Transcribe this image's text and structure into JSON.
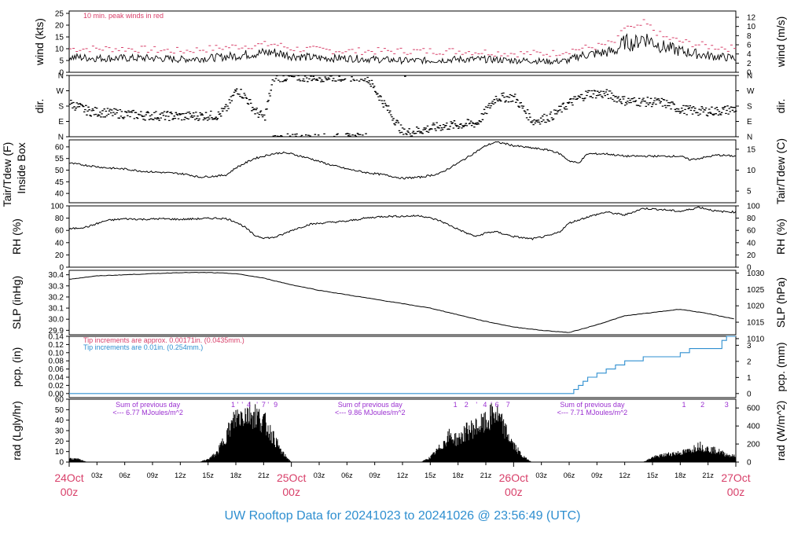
{
  "title": "UW Rooftop Data for 20241023  to  20241026 @ 23:56:49  (UTC)",
  "colors": {
    "pink": "#d8406a",
    "blue": "#2f8fd0",
    "purple": "#9a2fd0",
    "ink": "#000000"
  },
  "time_axis": {
    "hours_total": 72,
    "tick_labels": [
      "03z",
      "06z",
      "09z",
      "12z",
      "15z",
      "18z",
      "21z",
      "03z",
      "06z",
      "09z",
      "12z",
      "15z",
      "18z",
      "21z",
      "03z",
      "06z",
      "09z",
      "12z",
      "15z",
      "18z",
      "21z"
    ],
    "tick_hours": [
      3,
      6,
      9,
      12,
      15,
      18,
      21,
      27,
      30,
      33,
      36,
      39,
      42,
      45,
      51,
      54,
      57,
      60,
      63,
      66,
      69
    ],
    "day_labels": [
      {
        "date": "24Oct",
        "time": "00z",
        "hour": 0
      },
      {
        "date": "25Oct",
        "time": "00z",
        "hour": 24
      },
      {
        "date": "26Oct",
        "time": "00z",
        "hour": 48
      },
      {
        "date": "27Oct",
        "time": "00z",
        "hour": 72
      }
    ]
  },
  "panels": {
    "wind": {
      "left_label": "wind (kts)",
      "right_label": "wind (m/s)",
      "left_ticks": [
        "0",
        "5",
        "10",
        "15",
        "20",
        "25"
      ],
      "right_ticks": [
        "0",
        "2",
        "4",
        "6",
        "8",
        "10",
        "12"
      ],
      "note": "10 min. peak winds in red"
    },
    "dir": {
      "left_label": "dir.",
      "right_label": "dir.",
      "left_ticks": [
        "N",
        "E",
        "S",
        "W",
        "N"
      ],
      "right_ticks": [
        "N",
        "E",
        "S",
        "W",
        "N"
      ]
    },
    "temp": {
      "left_label_1": "Tair/Tdew (F)",
      "left_label_2": "Inside Box",
      "right_label": "Tair/Tdew (C)",
      "left_ticks": [
        "40",
        "45",
        "50",
        "55",
        "60"
      ],
      "right_ticks": [
        "5",
        "10",
        "15"
      ]
    },
    "rh": {
      "left_label": "RH (%)",
      "right_label": "RH (%)",
      "left_ticks": [
        "0",
        "20",
        "40",
        "60",
        "80",
        "100"
      ],
      "right_ticks": [
        "0",
        "20",
        "40",
        "60",
        "80",
        "100"
      ]
    },
    "slp": {
      "left_label": "SLP (inHg)",
      "right_label": "SLP (hPa)",
      "left_ticks": [
        "29.9",
        "30.0",
        "30.1",
        "30.2",
        "30.3",
        "30.4"
      ],
      "right_ticks": [
        "1010",
        "1015",
        "1020",
        "1025",
        "1030"
      ]
    },
    "pcp": {
      "left_label": "pcp. (in)",
      "right_label": "pcp. (mm)",
      "left_ticks": [
        "0.00",
        "0.02",
        "0.04",
        "0.06",
        "0.08",
        "0.10",
        "0.12",
        "0.14"
      ],
      "right_ticks": [
        "0",
        "1",
        "2",
        "3"
      ],
      "note_1": "Tip increments are approx. 0.00171in. (0.0435mm.)",
      "note_2": "Tip increments are 0.01in. (0.254mm.)"
    },
    "rad": {
      "left_label": "rad (Lgly/hr)",
      "right_label": "rad (W/m^2)",
      "left_ticks": [
        "0",
        "10",
        "20",
        "30",
        "40",
        "50",
        "60"
      ],
      "right_ticks": [
        "0",
        "200",
        "400",
        "600"
      ],
      "day_notes": [
        {
          "line1": "Sum of previous day",
          "line2": "<--- 6.77 MJoules/m^2",
          "hour": 8.5
        },
        {
          "line1": "Sum of previous day",
          "line2": "<--- 9.86 MJoules/m^2",
          "hour": 32.5
        },
        {
          "line1": "Sum of previous day",
          "line2": "<--- 7.71 MJoules/m^2",
          "hour": 56.5
        }
      ],
      "top_marks": [
        {
          "text": "1",
          "hour": 17.7
        },
        {
          "text": "'",
          "hour": 18.2
        },
        {
          "text": "'",
          "hour": 18.7
        },
        {
          "text": "4",
          "hour": 19.4
        },
        {
          "text": "'",
          "hour": 20.3
        },
        {
          "text": "7",
          "hour": 21.0
        },
        {
          "text": "'",
          "hour": 21.5
        },
        {
          "text": "9",
          "hour": 22.3
        },
        {
          "text": "1",
          "hour": 41.7
        },
        {
          "text": "2",
          "hour": 42.9
        },
        {
          "text": "'",
          "hour": 44.0
        },
        {
          "text": "4",
          "hour": 44.9
        },
        {
          "text": "'",
          "hour": 45.6
        },
        {
          "text": "6",
          "hour": 46.2
        },
        {
          "text": "7",
          "hour": 47.4
        },
        {
          "text": "1",
          "hour": 66.4
        },
        {
          "text": "2",
          "hour": 68.4
        },
        {
          "text": "3",
          "hour": 71.0
        }
      ]
    }
  },
  "chart_data": {
    "type": "line",
    "x_units": "hours since 24Oct 00z",
    "x_range": [
      0,
      72
    ],
    "series": [
      {
        "name": "wind",
        "units": "kts",
        "ylim": [
          0,
          26
        ],
        "x": [
          0,
          3,
          6,
          9,
          12,
          15,
          18,
          20,
          22,
          24,
          27,
          30,
          33,
          36,
          39,
          42,
          45,
          48,
          50,
          52,
          54,
          55,
          57,
          59,
          60,
          61,
          62,
          63,
          64,
          66,
          69,
          72
        ],
        "y": [
          6.5,
          6,
          6,
          6,
          5.5,
          6,
          7,
          8,
          8.5,
          7,
          6,
          6,
          5.5,
          5,
          5,
          5.5,
          5.5,
          5,
          5,
          4.5,
          5,
          7,
          8,
          9,
          13,
          12,
          15,
          13,
          11,
          9,
          7,
          6
        ]
      },
      {
        "name": "10 min. peak winds",
        "units": "kts",
        "ylim": [
          0,
          26
        ],
        "x": [
          0,
          6,
          12,
          18,
          22,
          24,
          30,
          36,
          42,
          48,
          52,
          55,
          57,
          59,
          60,
          61,
          62,
          63,
          64,
          66,
          69,
          72
        ],
        "y": [
          10,
          10,
          9,
          11,
          12,
          10,
          9,
          9,
          9,
          8,
          8,
          10,
          11,
          13,
          20,
          18,
          21,
          18,
          15,
          13,
          11,
          10
        ]
      },
      {
        "name": "dir.",
        "units": "deg",
        "ylim": [
          0,
          360
        ],
        "x": [
          0,
          2,
          4,
          8,
          12,
          16,
          17,
          18,
          19,
          20,
          21,
          22,
          24,
          28,
          32,
          36,
          40,
          44,
          46,
          48,
          50,
          52,
          54,
          56,
          58,
          60,
          62,
          64,
          66,
          68,
          70,
          72
        ],
        "y": [
          195,
          150,
          140,
          125,
          120,
          125,
          170,
          280,
          230,
          150,
          110,
          350,
          350,
          350,
          355,
          20,
          60,
          80,
          230,
          230,
          90,
          120,
          200,
          255,
          250,
          210,
          205,
          200,
          160,
          150,
          150,
          165
        ]
      },
      {
        "name": "Tair",
        "units": "F",
        "ylim": [
          36,
          63
        ],
        "x": [
          0,
          2,
          4,
          6,
          8,
          10,
          12,
          13,
          14,
          16,
          17,
          18,
          20,
          22,
          23,
          24,
          26,
          28,
          30,
          32,
          34,
          36,
          38,
          40,
          42,
          44,
          45,
          46,
          47,
          48,
          50,
          52,
          53,
          54,
          55,
          56,
          58,
          60,
          62,
          64,
          66,
          67,
          68,
          70,
          72
        ],
        "y": [
          53,
          52,
          51,
          50.5,
          49.5,
          49,
          48.5,
          48,
          47,
          47.5,
          48,
          51,
          55,
          57,
          57.5,
          57,
          55,
          52.5,
          50.5,
          49,
          48,
          46.5,
          47,
          48.5,
          53,
          58,
          60.5,
          62,
          61.5,
          60.5,
          59.5,
          58.5,
          57,
          54,
          53,
          57,
          57,
          56,
          56,
          56,
          56,
          54.5,
          55,
          56.5,
          56
        ]
      },
      {
        "name": "RH",
        "units": "%",
        "ylim": [
          0,
          100
        ],
        "x": [
          0,
          2,
          4,
          6,
          8,
          10,
          12,
          14,
          16,
          17,
          18,
          19,
          20,
          21,
          22,
          23,
          24,
          26,
          28,
          30,
          32,
          34,
          36,
          38,
          40,
          42,
          43,
          44,
          45,
          46,
          48,
          50,
          52,
          53,
          54,
          56,
          58,
          60,
          62,
          64,
          66,
          67,
          68,
          70,
          72
        ],
        "y": [
          62,
          66,
          76,
          79,
          78,
          79,
          78,
          79,
          80,
          79,
          74,
          65,
          52,
          48,
          48,
          53,
          60,
          70,
          73,
          75,
          80,
          83,
          83,
          84,
          76,
          62,
          55,
          50,
          56,
          58,
          50,
          46,
          52,
          58,
          72,
          82,
          90,
          85,
          96,
          94,
          91,
          94,
          98,
          91,
          90
        ]
      },
      {
        "name": "SLP",
        "units": "inHg",
        "ylim": [
          29.86,
          30.44
        ],
        "x": [
          0,
          3,
          6,
          9,
          12,
          15,
          18,
          21,
          24,
          27,
          30,
          33,
          36,
          39,
          42,
          45,
          48,
          51,
          54,
          57,
          60,
          63,
          66,
          69,
          72
        ],
        "y": [
          30.36,
          30.39,
          30.4,
          30.41,
          30.42,
          30.42,
          30.41,
          30.37,
          30.31,
          30.26,
          30.22,
          30.18,
          30.14,
          30.1,
          30.04,
          29.98,
          29.93,
          29.9,
          29.88,
          29.95,
          30.03,
          30.06,
          30.09,
          30.05,
          30.0
        ]
      },
      {
        "name": "pcp.",
        "units": "in",
        "ylim": [
          -0.01,
          0.14
        ],
        "x": [
          0,
          54,
          54.5,
          55,
          55.5,
          56,
          57,
          58,
          59,
          60,
          61,
          62,
          63,
          64,
          65,
          66,
          67,
          68,
          69,
          70,
          70.5,
          71,
          72
        ],
        "y": [
          0,
          0,
          0.01,
          0.02,
          0.03,
          0.04,
          0.05,
          0.06,
          0.07,
          0.08,
          0.08,
          0.09,
          0.09,
          0.09,
          0.09,
          0.1,
          0.11,
          0.11,
          0.11,
          0.11,
          0.13,
          0.14,
          0.14
        ]
      },
      {
        "name": "rad",
        "units": "Lgly/hr",
        "ylim": [
          0,
          60
        ],
        "x": [
          0,
          1,
          2,
          14,
          15,
          16,
          17,
          18,
          19,
          20,
          21,
          22,
          23,
          24,
          38,
          39,
          40,
          41,
          42,
          43,
          44,
          45,
          46,
          47,
          48,
          49,
          50,
          62,
          63,
          64,
          65,
          66,
          67,
          68,
          69,
          70,
          71,
          72
        ],
        "y": [
          4,
          3,
          0,
          0,
          3,
          10,
          30,
          48,
          53,
          52,
          44,
          28,
          10,
          0,
          0,
          5,
          15,
          28,
          24,
          34,
          38,
          42,
          54,
          36,
          18,
          6,
          0,
          0,
          5,
          7,
          9,
          10,
          12,
          18,
          14,
          12,
          8,
          6
        ]
      }
    ]
  }
}
